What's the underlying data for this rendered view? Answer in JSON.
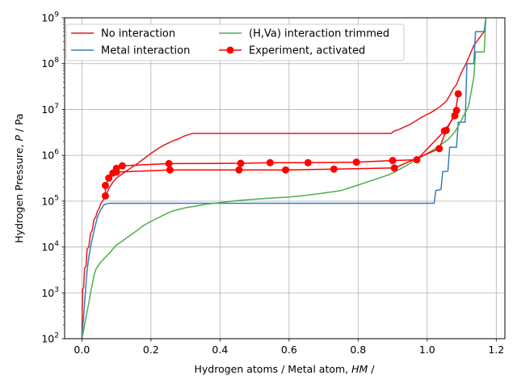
{
  "chart_data": {
    "type": "line",
    "title": "",
    "xlabel": "Hydrogen atoms / Metal atom,",
    "xlabel_symbol": "HM",
    "xlabel_tail": " /",
    "ylabel": "Hydrogen Pressure,",
    "ylabel_symbol": "P",
    "ylabel_tail": " / Pa",
    "xlim": [
      -0.05,
      1.225
    ],
    "ylim": [
      100,
      1000000000
    ],
    "yscale": "log",
    "grid": true,
    "legend_position": "top-left",
    "x_ticks": [
      0.0,
      0.2,
      0.4,
      0.6,
      0.8,
      1.0,
      1.2
    ],
    "x_tick_labels": [
      "0.0",
      "0.2",
      "0.4",
      "0.6",
      "0.8",
      "1.0",
      "1.2"
    ],
    "y_ticks": [
      100,
      1000,
      10000,
      100000,
      1000000,
      10000000,
      100000000,
      1000000000
    ],
    "y_tick_labels": [
      {
        "base": "10",
        "exp": "2"
      },
      {
        "base": "10",
        "exp": "3"
      },
      {
        "base": "10",
        "exp": "4"
      },
      {
        "base": "10",
        "exp": "5"
      },
      {
        "base": "10",
        "exp": "6"
      },
      {
        "base": "10",
        "exp": "7"
      },
      {
        "base": "10",
        "exp": "8"
      },
      {
        "base": "10",
        "exp": "9"
      }
    ],
    "series": [
      {
        "name": "No interaction",
        "color": "#e41a1c",
        "marker": "none",
        "segments": [
          [
            [
              0.0,
              100
            ],
            [
              0.002,
              1200
            ],
            [
              0.005,
              1300
            ],
            [
              0.008,
              3500
            ],
            [
              0.012,
              3800
            ],
            [
              0.015,
              9000
            ],
            [
              0.02,
              10000
            ],
            [
              0.025,
              20000
            ],
            [
              0.03,
              23000
            ],
            [
              0.035,
              40000
            ],
            [
              0.04,
              45000
            ],
            [
              0.045,
              60000
            ],
            [
              0.05,
              70000
            ],
            [
              0.055,
              90000
            ],
            [
              0.06,
              100000
            ],
            [
              0.07,
              140000
            ],
            [
              0.08,
              200000
            ],
            [
              0.09,
              260000
            ],
            [
              0.1,
              320000
            ],
            [
              0.12,
              410000
            ],
            [
              0.14,
              520000
            ],
            [
              0.16,
              650000
            ],
            [
              0.18,
              850000
            ],
            [
              0.2,
              1100000
            ],
            [
              0.22,
              1400000
            ],
            [
              0.24,
              1700000
            ],
            [
              0.26,
              2000000
            ],
            [
              0.28,
              2300000
            ],
            [
              0.3,
              2700000
            ],
            [
              0.32,
              3000000
            ],
            [
              0.4,
              3000000
            ],
            [
              0.6,
              3000000
            ],
            [
              0.8,
              3000000
            ],
            [
              0.895,
              3000000
            ],
            [
              0.905,
              3400000
            ],
            [
              0.92,
              3700000
            ],
            [
              0.935,
              4200000
            ],
            [
              0.95,
              4700000
            ],
            [
              0.965,
              5500000
            ],
            [
              0.98,
              6500000
            ],
            [
              0.995,
              7500000
            ],
            [
              1.01,
              8500000
            ],
            [
              1.025,
              10000000
            ],
            [
              1.04,
              12000000
            ],
            [
              1.055,
              15000000
            ],
            [
              1.065,
              20000000
            ],
            [
              1.075,
              28000000
            ],
            [
              1.085,
              35000000
            ],
            [
              1.095,
              55000000
            ],
            [
              1.115,
              110000000
            ],
            [
              1.135,
              250000000
            ],
            [
              1.165,
              500000000
            ],
            [
              1.17,
              1000000000
            ]
          ]
        ]
      },
      {
        "name": "Metal interaction",
        "color": "#377eb8",
        "marker": "none",
        "segments": [
          [
            [
              0.0,
              100
            ],
            [
              0.005,
              300
            ],
            [
              0.01,
              1000
            ],
            [
              0.015,
              3000
            ],
            [
              0.02,
              6000
            ],
            [
              0.025,
              10000
            ],
            [
              0.03,
              15000
            ],
            [
              0.035,
              22000
            ],
            [
              0.04,
              32000
            ],
            [
              0.045,
              45000
            ],
            [
              0.05,
              55000
            ],
            [
              0.055,
              65000
            ],
            [
              0.06,
              75000
            ],
            [
              0.065,
              85000
            ],
            [
              0.08,
              90000
            ],
            [
              0.3,
              90000
            ],
            [
              0.6,
              90000
            ],
            [
              0.9,
              90000
            ],
            [
              1.02,
              90000
            ],
            [
              1.025,
              170000
            ],
            [
              1.04,
              180000
            ],
            [
              1.045,
              440000
            ],
            [
              1.06,
              450000
            ],
            [
              1.065,
              1500000
            ],
            [
              1.085,
              1500000
            ],
            [
              1.09,
              5300000
            ],
            [
              1.11,
              5300000
            ],
            [
              1.115,
              100000000
            ],
            [
              1.135,
              100000000
            ],
            [
              1.14,
              500000000
            ],
            [
              1.165,
              500000000
            ],
            [
              1.17,
              1000000000
            ]
          ]
        ]
      },
      {
        "name": "(H,Va) interaction trimmed",
        "color": "#4daf4a",
        "marker": "none",
        "segments": [
          [
            [
              0.0,
              100
            ],
            [
              0.005,
              150
            ],
            [
              0.01,
              250
            ],
            [
              0.02,
              600
            ],
            [
              0.025,
              1000
            ],
            [
              0.03,
              1500
            ],
            [
              0.035,
              2400
            ],
            [
              0.04,
              3200
            ],
            [
              0.05,
              4200
            ],
            [
              0.06,
              5200
            ],
            [
              0.07,
              6200
            ],
            [
              0.08,
              7400
            ],
            [
              0.09,
              9000
            ],
            [
              0.1,
              11000
            ],
            [
              0.12,
              14000
            ],
            [
              0.14,
              18000
            ],
            [
              0.16,
              23000
            ],
            [
              0.18,
              30000
            ],
            [
              0.2,
              36000
            ],
            [
              0.22,
              43000
            ],
            [
              0.24,
              51000
            ],
            [
              0.26,
              60000
            ],
            [
              0.28,
              66000
            ],
            [
              0.3,
              72000
            ],
            [
              0.33,
              78000
            ],
            [
              0.36,
              86000
            ],
            [
              0.4,
              93000
            ],
            [
              0.45,
              103000
            ],
            [
              0.5,
              110000
            ],
            [
              0.55,
              117000
            ],
            [
              0.6,
              123000
            ],
            [
              0.65,
              134000
            ],
            [
              0.7,
              150000
            ],
            [
              0.75,
              170000
            ],
            [
              0.8,
              225000
            ],
            [
              0.85,
              300000
            ],
            [
              0.89,
              380000
            ],
            [
              0.91,
              450000
            ],
            [
              0.94,
              600000
            ],
            [
              0.97,
              820000
            ],
            [
              1.0,
              1100000
            ],
            [
              1.03,
              1500000
            ],
            [
              1.06,
              2200000
            ],
            [
              1.08,
              3200000
            ],
            [
              1.1,
              6000000
            ],
            [
              1.12,
              12000000
            ],
            [
              1.135,
              50000000
            ],
            [
              1.14,
              180000000
            ],
            [
              1.165,
              180000000
            ],
            [
              1.17,
              1000000000
            ]
          ]
        ]
      },
      {
        "name": "Experiment, activated",
        "color": "#ff0000",
        "marker": "circle",
        "segments": [
          [
            [
              0.068,
              130000
            ],
            [
              0.068,
              220000
            ],
            [
              0.078,
              320000
            ],
            [
              0.09,
              410000
            ],
            [
              0.1,
              520000
            ],
            [
              0.117,
              590000
            ],
            [
              0.252,
              660000
            ],
            [
              0.46,
              670000
            ],
            [
              0.545,
              690000
            ],
            [
              0.655,
              690000
            ],
            [
              0.795,
              710000
            ],
            [
              0.9,
              770000
            ],
            [
              0.97,
              800000
            ],
            [
              1.05,
              3400000
            ],
            [
              1.08,
              7300000
            ],
            [
              1.09,
              22000000
            ]
          ],
          [
            [
              0.1,
              430000
            ],
            [
              0.255,
              480000
            ],
            [
              0.455,
              480000
            ],
            [
              0.59,
              480000
            ],
            [
              0.73,
              500000
            ],
            [
              0.905,
              530000
            ],
            [
              1.035,
              1400000
            ],
            [
              1.055,
              3500000
            ],
            [
              1.085,
              9500000
            ]
          ]
        ]
      }
    ]
  }
}
